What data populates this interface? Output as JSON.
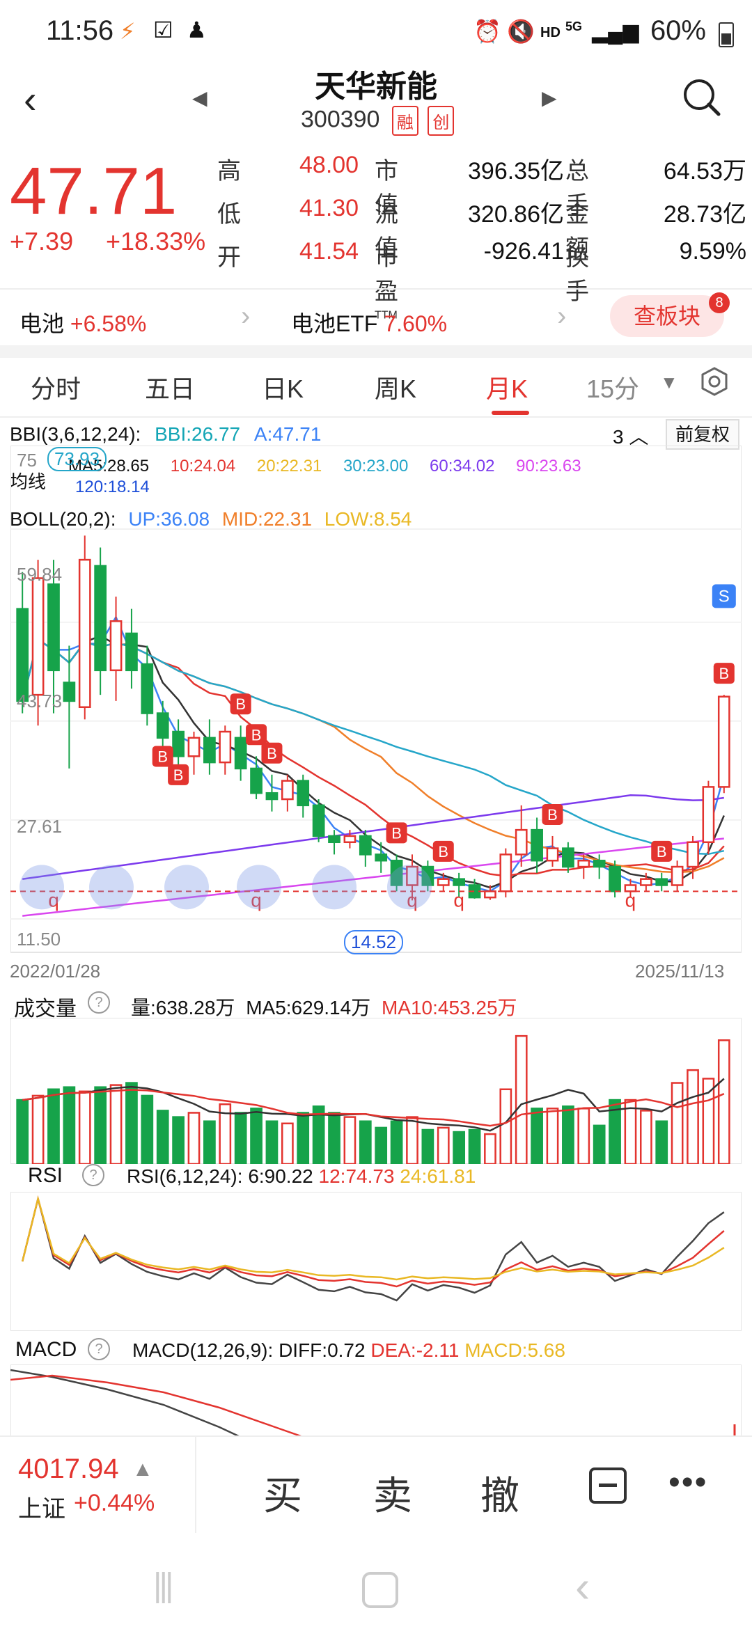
{
  "status": {
    "time": "11:56",
    "battery": "60%",
    "net": "HD",
    "net2": "5G"
  },
  "header": {
    "title": "天华新能",
    "code": "300390",
    "tags": [
      "融",
      "创"
    ]
  },
  "quote": {
    "price": "47.71",
    "change": "+7.39",
    "change_pct": "+18.33%",
    "rows": [
      {
        "l1": "高",
        "v1": "48.00",
        "l2": "市值",
        "v2": "396.35亿",
        "l3": "总手",
        "v3": "64.53万"
      },
      {
        "l1": "低",
        "v1": "41.30",
        "l2": "流值",
        "v2": "320.86亿",
        "l3": "金额",
        "v3": "28.73亿"
      },
      {
        "l1": "开",
        "v1": "41.54",
        "l2": "市盈",
        "l2sup": "TTM",
        "v2": "-926.41",
        "l3": "换手",
        "v3": "9.59%"
      }
    ]
  },
  "related": {
    "sector_name": "电池",
    "sector_pct": "+6.58%",
    "etf_name": "电池ETF",
    "etf_pct": "7.60%",
    "board_button": "查板块",
    "board_badge": "8"
  },
  "tabs": {
    "items": [
      "分时",
      "五日",
      "日K",
      "周K",
      "月K",
      "15分"
    ],
    "active": "月K"
  },
  "kline": {
    "bbi_label": "BBI(3,6,12,24):",
    "bbi_val": "BBI:26.77",
    "a_val": "A:47.71",
    "count": "3",
    "adjust": "前复权",
    "ma_label": "均线",
    "ma": [
      "MA5:28.65",
      "10:24.04",
      "20:22.31",
      "30:23.00",
      "60:34.02",
      "90:23.63",
      "120:18.14"
    ],
    "boll_label": "BOLL(20,2):",
    "boll_up": "UP:36.08",
    "boll_mid": "MID:22.31",
    "boll_low": "LOW:8.54",
    "y_ticks": [
      "75",
      "59.84",
      "43.73",
      "27.61",
      "11.50"
    ],
    "hi_label": "73.93",
    "lo_label": "14.52",
    "date_start": "2022/01/28",
    "date_end": "2025/11/13",
    "signal_b": "B",
    "signal_s": "S",
    "signal_q": "q"
  },
  "volume": {
    "title": "成交量",
    "vol": "量:638.28万",
    "ma5": "MA5:629.14万",
    "ma10": "MA10:453.25万"
  },
  "rsi": {
    "title": "RSI",
    "params": "RSI(6,12,24):",
    "r6": "6:90.22",
    "r12": "12:74.73",
    "r24": "24:61.81"
  },
  "macd": {
    "title": "MACD",
    "params": "MACD(12,26,9):",
    "diff": "DIFF:0.72",
    "dea": "DEA:-2.11",
    "macd": "MACD:5.68"
  },
  "bottom": {
    "index_value": "4017.94",
    "index_name": "上证",
    "index_change": "+0.44%",
    "buy": "买",
    "sell": "卖",
    "cancel": "撤"
  },
  "chart_data": {
    "type": "candlestick",
    "title": "天华新能 月K",
    "x_range": [
      "2022/01/28",
      "2025/11/13"
    ],
    "ylim": [
      11.5,
      75
    ],
    "y_ticks": [
      75,
      59.84,
      43.73,
      27.61,
      11.5
    ],
    "candles": [
      {
        "o": 62,
        "c": 47,
        "h": 68,
        "l": 45
      },
      {
        "o": 48,
        "c": 67,
        "h": 70,
        "l": 43
      },
      {
        "o": 66,
        "c": 52,
        "h": 70,
        "l": 45
      },
      {
        "o": 50,
        "c": 47,
        "h": 56,
        "l": 36
      },
      {
        "o": 46,
        "c": 70,
        "h": 73.93,
        "l": 44
      },
      {
        "o": 69,
        "c": 52,
        "h": 72,
        "l": 48
      },
      {
        "o": 52,
        "c": 60,
        "h": 64,
        "l": 47
      },
      {
        "o": 58,
        "c": 52,
        "h": 62,
        "l": 49
      },
      {
        "o": 53,
        "c": 45,
        "h": 56,
        "l": 43
      },
      {
        "o": 45,
        "c": 41,
        "h": 47,
        "l": 39
      },
      {
        "o": 42,
        "c": 38,
        "h": 44,
        "l": 36
      },
      {
        "o": 38,
        "c": 41,
        "h": 42,
        "l": 35
      },
      {
        "o": 41,
        "c": 37,
        "h": 44,
        "l": 35
      },
      {
        "o": 37,
        "c": 42,
        "h": 43,
        "l": 35
      },
      {
        "o": 41,
        "c": 36,
        "h": 43,
        "l": 34
      },
      {
        "o": 36,
        "c": 32,
        "h": 38,
        "l": 31
      },
      {
        "o": 32,
        "c": 31,
        "h": 35,
        "l": 29
      },
      {
        "o": 31,
        "c": 34,
        "h": 35,
        "l": 29
      },
      {
        "o": 34,
        "c": 30,
        "h": 35,
        "l": 28
      },
      {
        "o": 30,
        "c": 25,
        "h": 31,
        "l": 24
      },
      {
        "o": 25,
        "c": 24,
        "h": 26,
        "l": 22
      },
      {
        "o": 24,
        "c": 25,
        "h": 26,
        "l": 23
      },
      {
        "o": 25,
        "c": 22,
        "h": 26,
        "l": 20
      },
      {
        "o": 22,
        "c": 21,
        "h": 24,
        "l": 19
      },
      {
        "o": 21,
        "c": 17,
        "h": 22,
        "l": 16
      },
      {
        "o": 17,
        "c": 20,
        "h": 22,
        "l": 14.52
      },
      {
        "o": 20,
        "c": 17,
        "h": 21,
        "l": 16
      },
      {
        "o": 17,
        "c": 18,
        "h": 19,
        "l": 16
      },
      {
        "o": 18,
        "c": 17,
        "h": 19,
        "l": 15
      },
      {
        "o": 17,
        "c": 15,
        "h": 18,
        "l": 14.8
      },
      {
        "o": 15,
        "c": 16,
        "h": 17,
        "l": 14.6
      },
      {
        "o": 16,
        "c": 22,
        "h": 23,
        "l": 15
      },
      {
        "o": 22,
        "c": 26,
        "h": 30,
        "l": 20
      },
      {
        "o": 26,
        "c": 21,
        "h": 28,
        "l": 19
      },
      {
        "o": 21,
        "c": 23,
        "h": 25,
        "l": 20
      },
      {
        "o": 23,
        "c": 20,
        "h": 24,
        "l": 19
      },
      {
        "o": 20,
        "c": 21,
        "h": 22,
        "l": 18
      },
      {
        "o": 21,
        "c": 20,
        "h": 22,
        "l": 18
      },
      {
        "o": 20,
        "c": 16,
        "h": 21,
        "l": 15
      },
      {
        "o": 16,
        "c": 17,
        "h": 18,
        "l": 15
      },
      {
        "o": 17,
        "c": 18,
        "h": 19,
        "l": 16
      },
      {
        "o": 18,
        "c": 17,
        "h": 19,
        "l": 16
      },
      {
        "o": 17,
        "c": 20,
        "h": 21,
        "l": 16
      },
      {
        "o": 20,
        "c": 24,
        "h": 25,
        "l": 18
      },
      {
        "o": 24,
        "c": 33,
        "h": 34,
        "l": 22
      },
      {
        "o": 33,
        "c": 47.71,
        "h": 48,
        "l": 32
      }
    ],
    "volume": [
      30,
      32,
      35,
      36,
      34,
      36,
      37,
      38,
      32,
      25,
      22,
      24,
      20,
      28,
      24,
      26,
      20,
      19,
      24,
      27,
      24,
      22,
      20,
      17,
      20,
      22,
      16,
      17,
      15,
      16,
      14,
      35,
      60,
      26,
      26,
      27,
      26,
      18,
      30,
      30,
      25,
      20,
      38,
      44,
      40,
      58
    ],
    "rsi6_last": 90.22,
    "rsi12_last": 74.73,
    "rsi24_last": 61.81
  }
}
